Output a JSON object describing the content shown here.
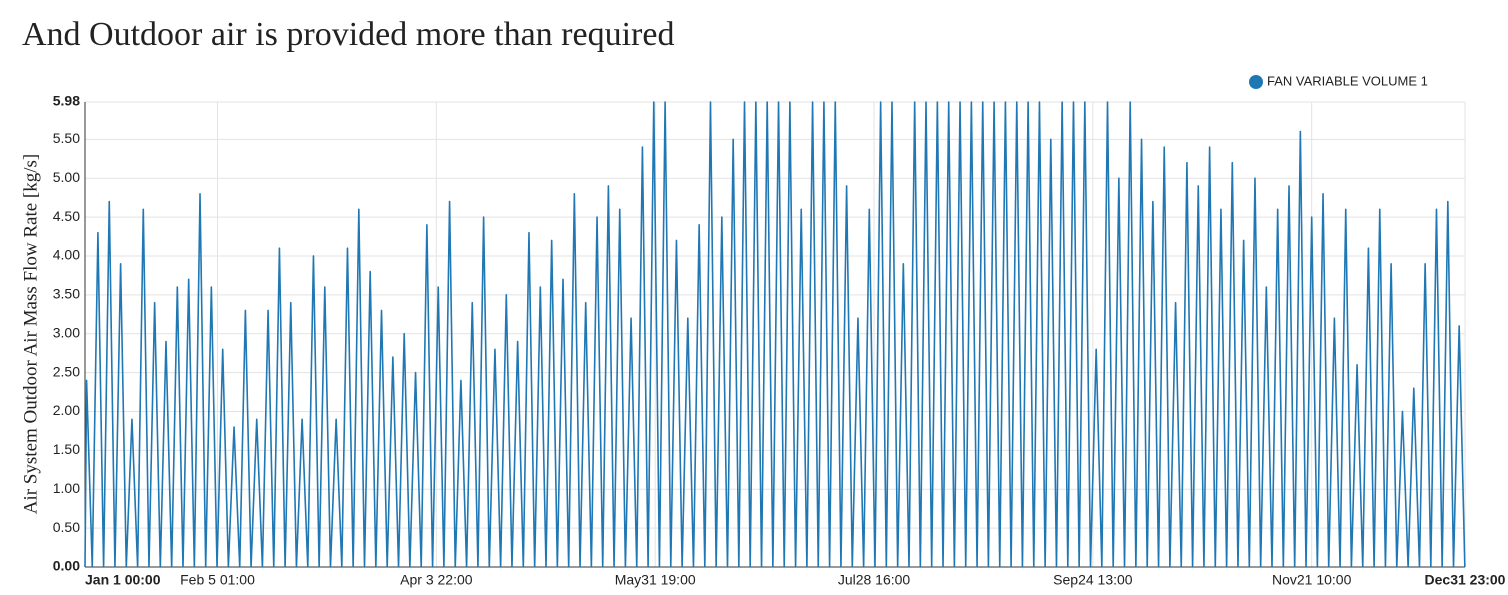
{
  "chart_data": {
    "type": "line",
    "title": "And Outdoor air is provided more than required",
    "y_label": "Air System Outdoor Air Mass Flow Rate [kg/s]",
    "xlim": [
      0,
      8759
    ],
    "xticks": [
      {
        "value": 0,
        "label": "Jan 1 00:00"
      },
      {
        "value": 841,
        "label": "Feb 5 01:00"
      },
      {
        "value": 2230,
        "label": "Apr 3 22:00"
      },
      {
        "value": 3619,
        "label": "May31 19:00"
      },
      {
        "value": 5008,
        "label": "Jul28 16:00"
      },
      {
        "value": 6397,
        "label": "Sep24 13:00"
      },
      {
        "value": 7786,
        "label": "Nov21 10:00"
      },
      {
        "value": 8759,
        "label": "Dec31 23:00"
      }
    ],
    "ylim": [
      0,
      5.98
    ],
    "yticks": [
      {
        "value": 0,
        "label": "0.00"
      },
      {
        "value": 0.5,
        "label": "0.50"
      },
      {
        "value": 1,
        "label": "1.00"
      },
      {
        "value": 1.5,
        "label": "1.50"
      },
      {
        "value": 2,
        "label": "2.00"
      },
      {
        "value": 2.5,
        "label": "2.50"
      },
      {
        "value": 3,
        "label": "3.00"
      },
      {
        "value": 3.5,
        "label": "3.50"
      },
      {
        "value": 4,
        "label": "4.00"
      },
      {
        "value": 4.5,
        "label": "4.50"
      },
      {
        "value": 5,
        "label": "5.00"
      },
      {
        "value": 5.5,
        "label": "5.50"
      },
      5.98
    ],
    "grid": true,
    "legend": "top-right",
    "x": [
      0,
      10,
      46,
      82,
      118,
      154,
      190,
      226,
      262,
      298,
      334,
      370,
      406,
      442,
      478,
      514,
      550,
      586,
      622,
      658,
      694,
      730,
      766,
      802,
      838,
      874,
      910,
      946,
      982,
      1018,
      1054,
      1090,
      1126,
      1162,
      1198,
      1234,
      1270,
      1306,
      1342,
      1378,
      1414,
      1450,
      1486,
      1522,
      1558,
      1594,
      1630,
      1666,
      1702,
      1738,
      1774,
      1810,
      1846,
      1882,
      1918,
      1954,
      1990,
      2026,
      2062,
      2098,
      2134,
      2170,
      2206,
      2242,
      2278,
      2314,
      2350,
      2386,
      2422,
      2458,
      2494,
      2530,
      2566,
      2602,
      2638,
      2674,
      2710,
      2746,
      2782,
      2818,
      2854,
      2890,
      2926,
      2962,
      2998,
      3034,
      3070,
      3106,
      3142,
      3178,
      3214,
      3250,
      3286,
      3322,
      3358,
      3394,
      3430,
      3466,
      3502,
      3538,
      3574,
      3610,
      3646,
      3682,
      3718,
      3754,
      3790,
      3826,
      3862,
      3898,
      3934,
      3970,
      4006,
      4042,
      4078,
      4114,
      4150,
      4186,
      4222,
      4258,
      4294,
      4330,
      4366,
      4402,
      4438,
      4474,
      4510,
      4546,
      4582,
      4618,
      4654,
      4690,
      4726,
      4762,
      4798,
      4834,
      4870,
      4906,
      4942,
      4978,
      5014,
      5050,
      5086,
      5122,
      5158,
      5194,
      5230,
      5266,
      5302,
      5338,
      5374,
      5410,
      5446,
      5482,
      5518,
      5554,
      5590,
      5626,
      5662,
      5698,
      5734,
      5770,
      5806,
      5842,
      5878,
      5914,
      5950,
      5986,
      6022,
      6058,
      6094,
      6130,
      6166,
      6202,
      6238,
      6274,
      6310,
      6346,
      6382,
      6418,
      6454,
      6490,
      6526,
      6562,
      6598,
      6634,
      6670,
      6706,
      6742,
      6778,
      6814,
      6850,
      6886,
      6922,
      6958,
      6994,
      7030,
      7066,
      7102,
      7138,
      7174,
      7210,
      7246,
      7282,
      7318,
      7354,
      7390,
      7426,
      7462,
      7498,
      7534,
      7570,
      7606,
      7642,
      7678,
      7714,
      7750,
      7786,
      7822,
      7858,
      7894,
      7930,
      7966,
      8002,
      8038,
      8074,
      8110,
      8146,
      8182,
      8218,
      8254,
      8290,
      8326,
      8362,
      8398,
      8434,
      8470,
      8506,
      8542,
      8578,
      8614,
      8650,
      8686,
      8722,
      8758
    ],
    "series": [
      {
        "name": "FAN VARIABLE VOLUME 1",
        "color": "#1f77b4",
        "values": [
          0,
          2.4,
          0,
          4.3,
          0,
          4.7,
          0,
          3.9,
          0,
          1.9,
          0,
          4.6,
          0,
          3.4,
          0,
          2.9,
          0,
          3.6,
          0,
          3.7,
          0,
          4.8,
          0,
          3.6,
          0,
          2.8,
          0,
          1.8,
          0,
          3.3,
          0,
          1.9,
          0,
          3.3,
          0,
          4.1,
          0,
          3.4,
          0,
          1.9,
          0,
          4.0,
          0,
          3.6,
          0,
          1.9,
          0,
          4.1,
          0,
          4.6,
          0,
          3.8,
          0,
          3.3,
          0,
          2.7,
          0,
          3.0,
          0,
          2.5,
          0,
          4.4,
          0,
          3.6,
          0,
          4.7,
          0,
          2.4,
          0,
          3.4,
          0,
          4.5,
          0,
          2.8,
          0,
          3.5,
          0,
          2.9,
          0,
          4.3,
          0,
          3.6,
          0,
          4.2,
          0,
          3.7,
          0,
          4.8,
          0,
          3.4,
          0,
          4.5,
          0,
          4.9,
          0,
          4.6,
          0,
          3.2,
          0,
          5.4,
          0,
          5.98,
          0,
          5.98,
          0,
          4.2,
          0,
          3.2,
          0,
          4.4,
          0,
          5.98,
          0,
          4.5,
          0,
          5.5,
          0,
          5.98,
          0,
          5.98,
          0,
          5.98,
          0,
          5.98,
          0,
          5.98,
          0,
          4.6,
          0,
          5.98,
          0,
          5.98,
          0,
          5.98,
          0,
          4.9,
          0,
          3.2,
          0,
          4.6,
          0,
          5.98,
          0,
          5.98,
          0,
          3.9,
          0,
          5.98,
          0,
          5.98,
          0,
          5.98,
          0,
          5.98,
          0,
          5.98,
          0,
          5.98,
          0,
          5.98,
          0,
          5.98,
          0,
          5.98,
          0,
          5.98,
          0,
          5.98,
          0,
          5.98,
          0,
          5.5,
          0,
          5.98,
          0,
          5.98,
          0,
          5.98,
          0,
          2.8,
          0,
          5.98,
          0,
          5.0,
          0,
          5.98,
          0,
          5.5,
          0,
          4.7,
          0,
          5.4,
          0,
          3.4,
          0,
          5.2,
          0,
          4.9,
          0,
          5.4,
          0,
          4.6,
          0,
          5.2,
          0,
          4.2,
          0,
          5.0,
          0,
          3.6,
          0,
          4.6,
          0,
          4.9,
          0,
          5.6,
          0,
          4.5,
          0,
          4.8,
          0,
          3.2,
          0,
          4.6,
          0,
          2.6,
          0,
          4.1,
          0,
          4.6,
          0,
          3.9,
          0,
          2.0,
          0,
          2.3,
          0,
          3.9,
          0,
          4.6,
          0,
          4.7,
          0,
          3.1,
          0
        ]
      }
    ]
  }
}
